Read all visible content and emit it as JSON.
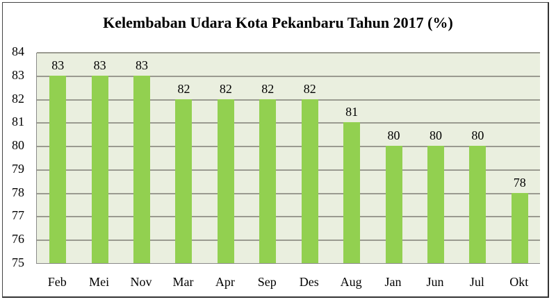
{
  "chart_data": {
    "type": "bar",
    "title": "Kelembaban Udara Kota Pekanbaru Tahun 2017 (%)",
    "xlabel": "",
    "ylabel": "",
    "categories": [
      "Feb",
      "Mei",
      "Nov",
      "Mar",
      "Apr",
      "Sep",
      "Des",
      "Aug",
      "Jan",
      "Jun",
      "Jul",
      "Okt"
    ],
    "values": [
      83,
      83,
      83,
      82,
      82,
      82,
      82,
      81,
      80,
      80,
      80,
      78
    ],
    "ylim": [
      75,
      84
    ],
    "yticks": [
      75,
      76,
      77,
      78,
      79,
      80,
      81,
      82,
      83,
      84
    ],
    "grid": true,
    "legend": null,
    "data_labels": true,
    "bar_color": "#92d050",
    "plot_background": "#eaefdf"
  }
}
